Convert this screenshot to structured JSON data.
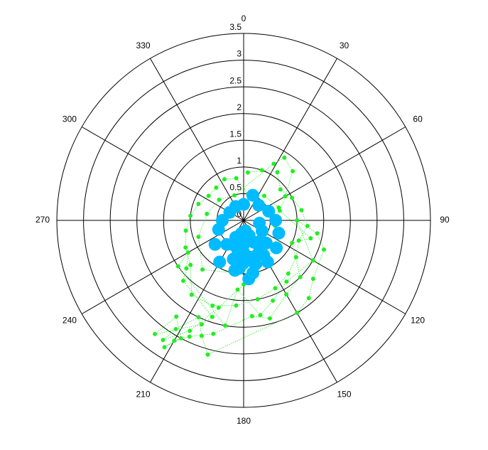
{
  "chart_data": {
    "type": "polar-scatter",
    "rlim": [
      0,
      3.5
    ],
    "rticks": [
      0,
      0.5,
      1,
      1.5,
      2,
      2.5,
      3,
      3.5
    ],
    "thetaticks": [
      0,
      30,
      60,
      90,
      120,
      150,
      180,
      210,
      240,
      270,
      300,
      330
    ],
    "grid": true,
    "series": [
      {
        "color": "#22ee22",
        "lines": true,
        "theta": [
          5,
          20,
          35,
          50,
          65,
          80,
          95,
          110,
          125,
          140,
          155,
          170,
          185,
          200,
          215,
          230,
          245,
          260,
          275,
          290,
          305,
          320,
          335,
          350,
          10,
          40,
          70,
          100,
          130,
          160,
          190,
          220,
          250,
          280,
          310,
          340,
          28,
          33,
          45,
          60,
          75,
          105,
          115,
          135,
          150,
          165,
          175,
          195,
          205,
          210,
          212,
          208,
          215,
          218,
          202,
          198,
          225,
          230,
          240,
          235,
          190,
          185,
          170,
          160,
          145,
          120,
          90,
          100,
          110,
          130,
          140,
          150,
          195,
          200,
          205,
          212,
          214,
          206,
          196,
          180
        ],
        "r": [
          0.9,
          1.0,
          1.1,
          0.9,
          1.0,
          1.1,
          1.2,
          1.1,
          1.2,
          1.3,
          1.4,
          1.5,
          1.6,
          1.7,
          1.7,
          1.3,
          1.2,
          1.1,
          1.0,
          0.9,
          0.8,
          0.8,
          0.85,
          0.8,
          0.5,
          0.6,
          0.7,
          0.6,
          0.8,
          0.9,
          1.0,
          1.2,
          0.9,
          0.7,
          0.6,
          0.5,
          1.2,
          1.4,
          1.3,
          0.9,
          0.7,
          1.3,
          1.0,
          1.5,
          1.6,
          1.9,
          1.8,
          2.2,
          2.4,
          2.6,
          2.8,
          2.5,
          2.2,
          2.7,
          2.1,
          1.9,
          1.6,
          1.4,
          1.2,
          1.5,
          2.0,
          1.3,
          1.8,
          1.6,
          1.4,
          1.5,
          1.0,
          1.4,
          1.6,
          1.7,
          1.9,
          2.0,
          2.6,
          2.3,
          2.0,
          2.4,
          2.7,
          2.3,
          1.7,
          1.2
        ]
      },
      {
        "color": "#00bbff",
        "lines": false,
        "theta": [
          0,
          20,
          45,
          70,
          90,
          110,
          130,
          150,
          170,
          190,
          210,
          230,
          250,
          270,
          300,
          330,
          140,
          150,
          160,
          170,
          180,
          190,
          200,
          160,
          170,
          180,
          175,
          165,
          185,
          195,
          120,
          100,
          135,
          155,
          205,
          215,
          170,
          180,
          150,
          190
        ],
        "r": [
          0.3,
          0.5,
          0.4,
          0.5,
          0.6,
          0.7,
          0.8,
          0.9,
          1.0,
          0.95,
          0.9,
          0.7,
          0.5,
          0.4,
          0.3,
          0.3,
          0.5,
          0.6,
          0.7,
          0.4,
          0.8,
          0.6,
          0.5,
          0.3,
          0.2,
          0.6,
          1.1,
          0.85,
          0.9,
          0.75,
          0.4,
          0.3,
          0.6,
          0.45,
          0.35,
          0.55,
          0.7,
          0.45,
          0.75,
          0.25
        ]
      }
    ]
  }
}
